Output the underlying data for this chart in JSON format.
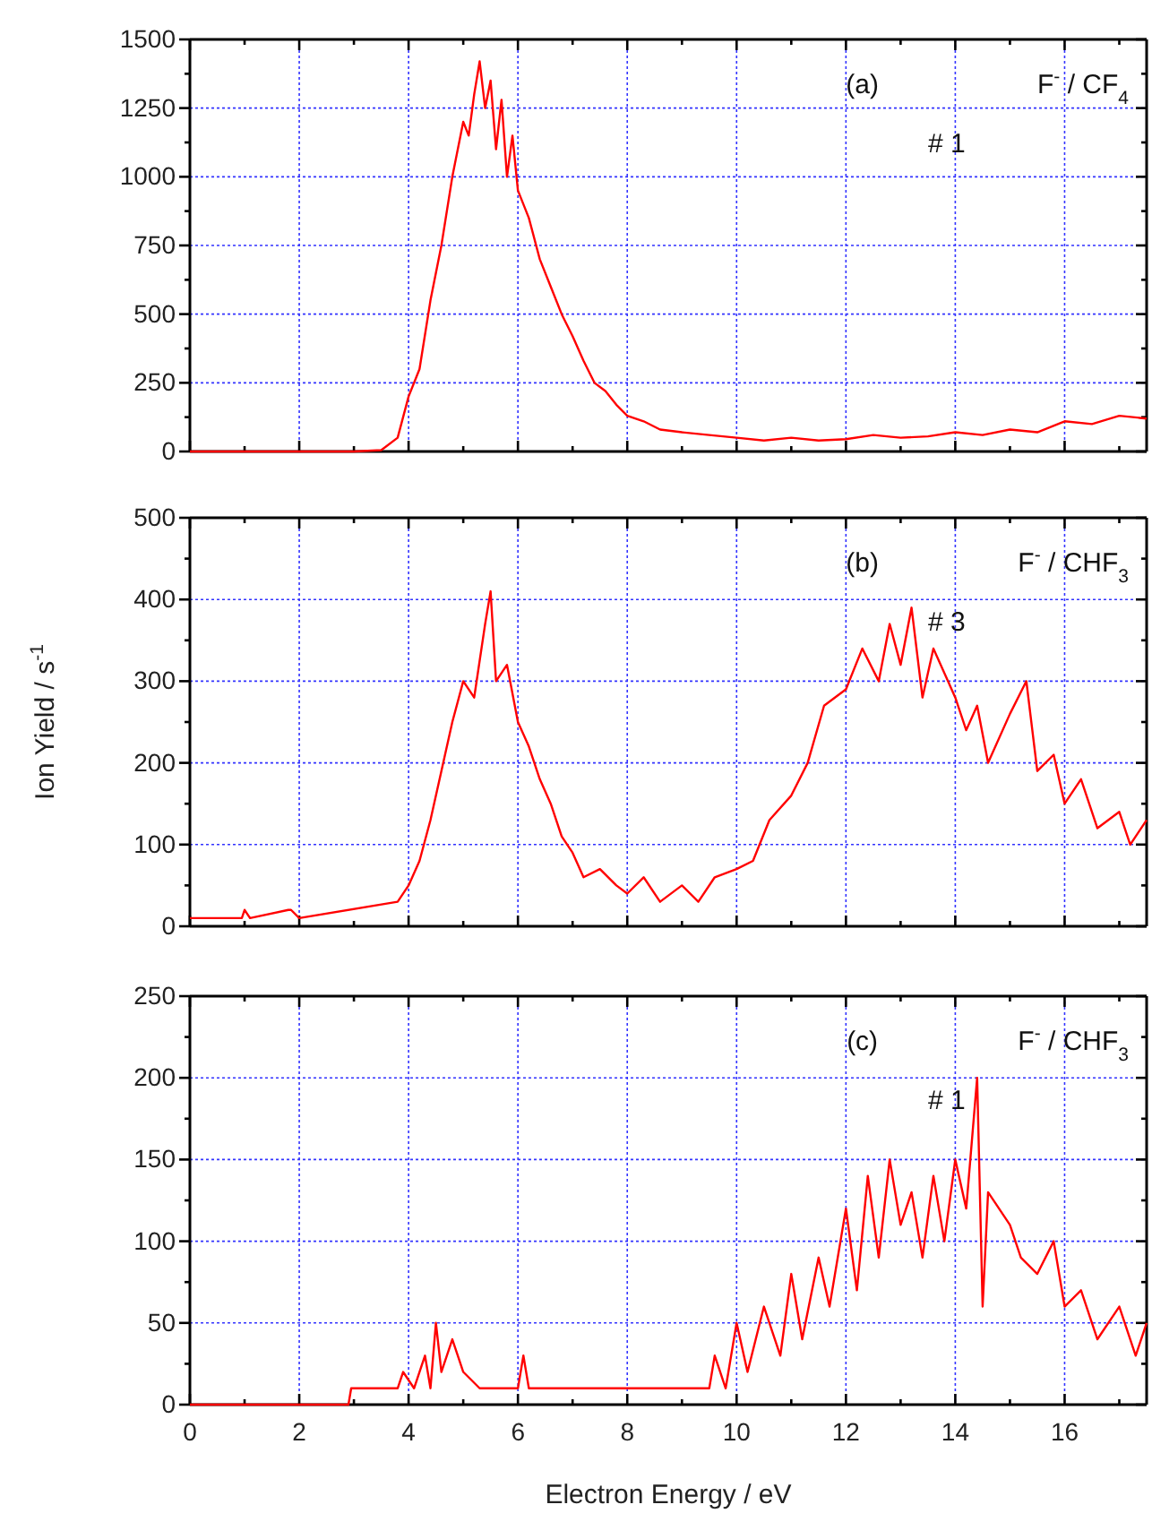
{
  "chart_data": [
    {
      "type": "line",
      "annotations": [
        "(a)",
        "F$^{-}$ / CF$_{4}$",
        "# 1"
      ],
      "xlim": [
        0,
        17.5
      ],
      "xticks": [
        0,
        {
          "value": 1,
          "label": null
        },
        2,
        {
          "value": 3,
          "label": null
        },
        4,
        {
          "value": 5,
          "label": null
        },
        6,
        {
          "value": 7,
          "label": null
        },
        8,
        {
          "value": 9,
          "label": null
        },
        10,
        {
          "value": 11,
          "label": null
        },
        12,
        {
          "value": 13,
          "label": null
        },
        14,
        {
          "value": 15,
          "label": null
        },
        16,
        {
          "value": 17,
          "label": null
        }
      ],
      "ylim": [
        0,
        1500
      ],
      "yticks": [
        0,
        {
          "value": 125,
          "label": null
        },
        250,
        {
          "value": 375,
          "label": null
        },
        500,
        {
          "value": 625,
          "label": null
        },
        750,
        {
          "value": 875,
          "label": null
        },
        1000,
        {
          "value": 1125,
          "label": null
        },
        1250,
        {
          "value": 1375,
          "label": null
        },
        1500
      ],
      "tick_labels": "y",
      "grid": true,
      "series": [
        {
          "color": "#ff0000",
          "x": [
            0,
            3,
            3.5,
            3.8,
            4.0,
            4.2,
            4.4,
            4.6,
            4.8,
            5.0,
            5.1,
            5.2,
            5.3,
            5.4,
            5.5,
            5.6,
            5.7,
            5.8,
            5.9,
            6.0,
            6.2,
            6.4,
            6.6,
            6.8,
            7.0,
            7.2,
            7.4,
            7.6,
            7.8,
            8.0,
            8.3,
            8.6,
            9,
            9.5,
            10,
            10.5,
            11,
            11.5,
            12,
            12.5,
            13,
            13.5,
            14,
            14.5,
            15,
            15.5,
            16,
            16.5,
            17,
            17.5
          ],
          "values": [
            0,
            0,
            5,
            50,
            200,
            300,
            550,
            750,
            1000,
            1200,
            1150,
            1300,
            1420,
            1250,
            1350,
            1100,
            1280,
            1000,
            1150,
            950,
            850,
            700,
            600,
            500,
            420,
            330,
            250,
            220,
            170,
            130,
            110,
            80,
            70,
            60,
            50,
            40,
            50,
            40,
            45,
            60,
            50,
            55,
            70,
            60,
            80,
            70,
            110,
            100,
            130,
            120
          ]
        }
      ]
    },
    {
      "type": "line",
      "ylabel": "Ion Yield / s$^{-1}$",
      "annotations": [
        "(b)",
        "F$^{-}$ / CHF$_{3}$",
        "# 3"
      ],
      "xlim": [
        0,
        17.5
      ],
      "xticks": [
        0,
        {
          "value": 1,
          "label": null
        },
        2,
        {
          "value": 3,
          "label": null
        },
        4,
        {
          "value": 5,
          "label": null
        },
        6,
        {
          "value": 7,
          "label": null
        },
        8,
        {
          "value": 9,
          "label": null
        },
        10,
        {
          "value": 11,
          "label": null
        },
        12,
        {
          "value": 13,
          "label": null
        },
        14,
        {
          "value": 15,
          "label": null
        },
        16,
        {
          "value": 17,
          "label": null
        }
      ],
      "ylim": [
        0,
        500
      ],
      "yticks": [
        0,
        {
          "value": 50,
          "label": null
        },
        100,
        {
          "value": 150,
          "label": null
        },
        200,
        {
          "value": 250,
          "label": null
        },
        300,
        {
          "value": 350,
          "label": null
        },
        400,
        {
          "value": 450,
          "label": null
        },
        500
      ],
      "tick_labels": "y",
      "grid": true,
      "series": [
        {
          "color": "#ff0000",
          "x": [
            0,
            0.95,
            1.0,
            1.1,
            1.8,
            1.85,
            2.0,
            3.8,
            4.0,
            4.2,
            4.4,
            4.6,
            4.8,
            5.0,
            5.2,
            5.4,
            5.5,
            5.6,
            5.8,
            6.0,
            6.2,
            6.4,
            6.6,
            6.8,
            7.0,
            7.2,
            7.5,
            7.8,
            8.0,
            8.3,
            8.6,
            9,
            9.3,
            9.6,
            10,
            10.3,
            10.6,
            11,
            11.3,
            11.6,
            12,
            12.3,
            12.6,
            12.8,
            13,
            13.2,
            13.4,
            13.6,
            14,
            14.2,
            14.4,
            14.6,
            15,
            15.3,
            15.5,
            15.8,
            16,
            16.3,
            16.6,
            17,
            17.2,
            17.5
          ],
          "values": [
            10,
            10,
            20,
            10,
            20,
            20,
            10,
            30,
            50,
            80,
            130,
            190,
            250,
            300,
            280,
            370,
            410,
            300,
            320,
            250,
            220,
            180,
            150,
            110,
            90,
            60,
            70,
            50,
            40,
            60,
            30,
            50,
            30,
            60,
            70,
            80,
            130,
            160,
            200,
            270,
            290,
            340,
            300,
            370,
            320,
            390,
            280,
            340,
            280,
            240,
            270,
            200,
            260,
            300,
            190,
            210,
            150,
            180,
            120,
            140,
            100,
            130
          ]
        }
      ]
    },
    {
      "type": "line",
      "xlabel": "Electron Energy / eV",
      "annotations": [
        "(c)",
        "F$^{-}$ / CHF$_{3}$",
        "# 1"
      ],
      "xlim": [
        0,
        17.5
      ],
      "xticks": [
        0,
        {
          "value": 1,
          "label": null
        },
        2,
        {
          "value": 3,
          "label": null
        },
        4,
        {
          "value": 5,
          "label": null
        },
        6,
        {
          "value": 7,
          "label": null
        },
        8,
        {
          "value": 9,
          "label": null
        },
        10,
        {
          "value": 11,
          "label": null
        },
        12,
        {
          "value": 13,
          "label": null
        },
        14,
        {
          "value": 15,
          "label": null
        },
        16,
        {
          "value": 17,
          "label": null
        }
      ],
      "ylim": [
        0,
        250
      ],
      "yticks": [
        0,
        {
          "value": 25,
          "label": null
        },
        50,
        {
          "value": 75,
          "label": null
        },
        100,
        {
          "value": 125,
          "label": null
        },
        150,
        {
          "value": 175,
          "label": null
        },
        200,
        {
          "value": 225,
          "label": null
        },
        250
      ],
      "grid": true,
      "series": [
        {
          "color": "#ff0000",
          "x": [
            0,
            2.9,
            2.95,
            3.8,
            3.9,
            4.1,
            4.3,
            4.4,
            4.5,
            4.6,
            4.8,
            5.0,
            5.3,
            6.0,
            6.1,
            6.2,
            9.5,
            9.6,
            9.8,
            10,
            10.2,
            10.5,
            10.8,
            11,
            11.2,
            11.5,
            11.7,
            12,
            12.2,
            12.4,
            12.6,
            12.8,
            13,
            13.2,
            13.4,
            13.6,
            13.8,
            14.0,
            14.2,
            14.4,
            14.5,
            14.6,
            15,
            15.2,
            15.5,
            15.8,
            16,
            16.3,
            16.6,
            17,
            17.3,
            17.5
          ],
          "values": [
            0,
            0,
            10,
            10,
            20,
            10,
            30,
            10,
            50,
            20,
            40,
            20,
            10,
            10,
            30,
            10,
            10,
            30,
            10,
            50,
            20,
            60,
            30,
            80,
            40,
            90,
            60,
            120,
            70,
            140,
            90,
            150,
            110,
            130,
            90,
            140,
            100,
            150,
            120,
            200,
            60,
            130,
            110,
            90,
            80,
            100,
            60,
            70,
            40,
            60,
            30,
            50
          ]
        }
      ]
    }
  ]
}
